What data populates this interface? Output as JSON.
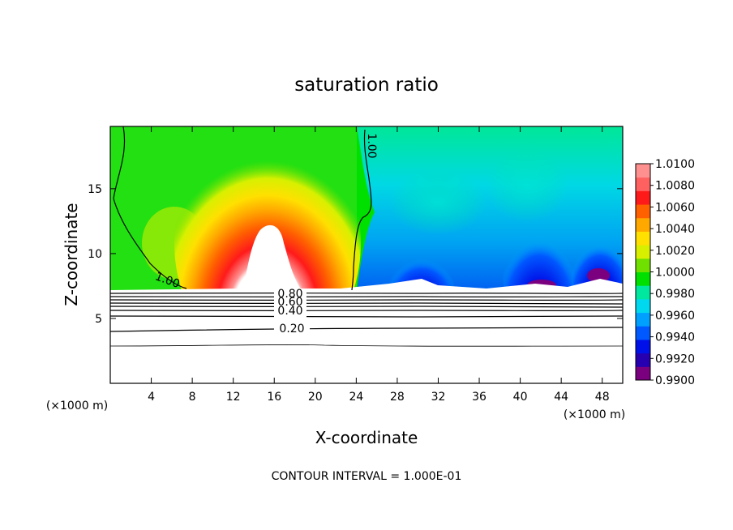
{
  "chart_data": {
    "type": "heatmap",
    "title": "saturation ratio",
    "xlabel": "X-coordinate",
    "ylabel": "Z-coordinate",
    "x_unit_left": "(×1000 m)",
    "x_unit_right": "(×1000 m)",
    "xlim": [
      0,
      50
    ],
    "ylim": [
      0,
      19.8
    ],
    "x_ticks": [
      4,
      8,
      12,
      16,
      20,
      24,
      28,
      32,
      36,
      40,
      44,
      48
    ],
    "y_ticks": [
      5,
      10,
      15
    ],
    "footer": "CONTOUR INTERVAL = 1.000E-01",
    "colorbar": {
      "range": [
        0.99,
        1.01
      ],
      "labels": [
        "1.0100",
        "1.0080",
        "1.0060",
        "1.0040",
        "1.0020",
        "1.0000",
        "0.9980",
        "0.9960",
        "0.9940",
        "0.9920",
        "0.9900"
      ],
      "colors": [
        "#7a0080",
        "#2600b0",
        "#0010e8",
        "#0058ff",
        "#00a0ff",
        "#00d8f0",
        "#00e8a0",
        "#00e000",
        "#70e000",
        "#d8f000",
        "#ffe000",
        "#ffa800",
        "#ff6000",
        "#ff1a1a",
        "#ff6060",
        "#ff9090"
      ]
    },
    "contour_labels": [
      {
        "text": "1.00",
        "value": 1.0,
        "x": 24.9,
        "y": 18.0
      },
      {
        "text": "1.00",
        "value": 1.0,
        "x": 5.3,
        "y": 7.7
      },
      {
        "text": "0.80",
        "value": 0.8,
        "x": 17.6,
        "y": 7.0
      },
      {
        "text": "0.60",
        "value": 0.6,
        "x": 17.6,
        "y": 6.4
      },
      {
        "text": "0.40",
        "value": 0.4,
        "x": 17.6,
        "y": 5.8
      },
      {
        "text": "0.20",
        "value": 0.2,
        "x": 17.6,
        "y": 4.4
      }
    ],
    "features": [
      {
        "name": "supersaturated plume",
        "x_center": 15.5,
        "peak_value": 1.01,
        "z_top": 13.5
      },
      {
        "name": "subsaturated region",
        "x_range": [
          24,
          50
        ],
        "min_value": 0.99
      }
    ]
  }
}
